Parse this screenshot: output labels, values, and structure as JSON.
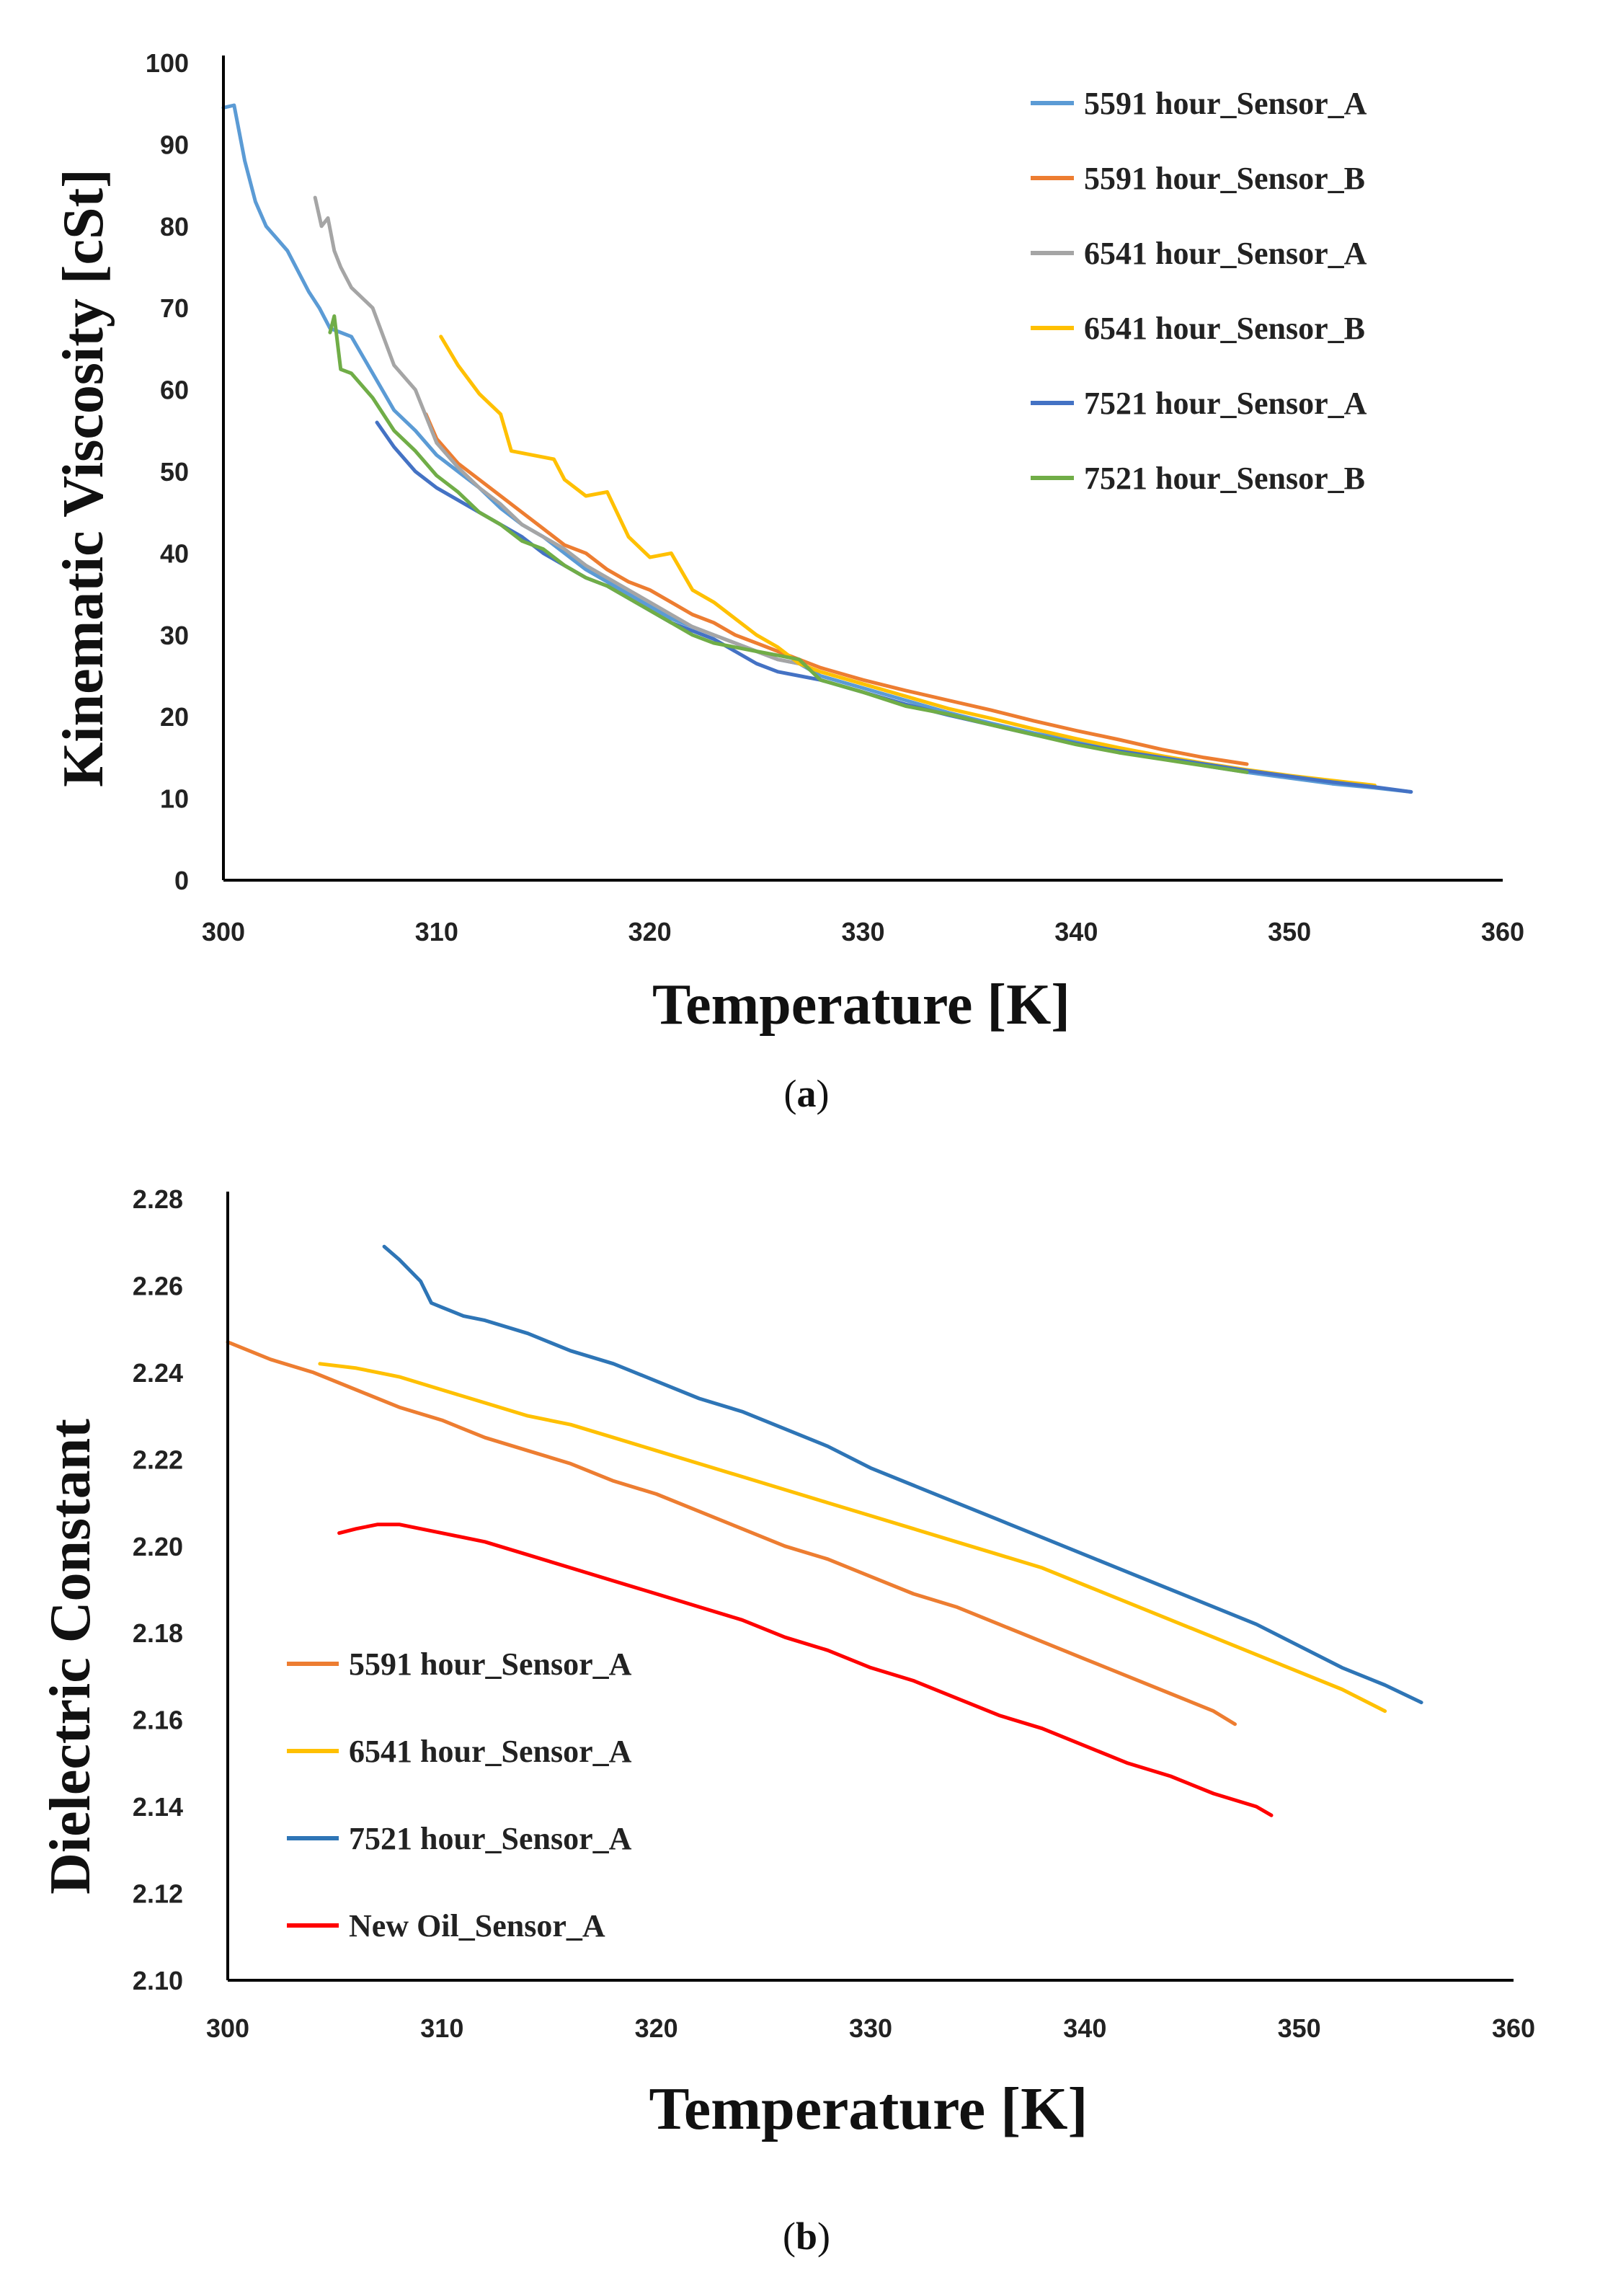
{
  "chart_data": [
    {
      "type": "line",
      "panel_label": "a",
      "xlabel": "Temperature [K]",
      "ylabel": "Kinematic Viscosity [cSt]",
      "xlim": [
        300,
        360
      ],
      "ylim": [
        0,
        100
      ],
      "xticks": [
        300,
        310,
        320,
        330,
        340,
        350,
        360
      ],
      "yticks": [
        0,
        10,
        20,
        30,
        40,
        50,
        60,
        70,
        80,
        90,
        100
      ],
      "legend_position": "top-right",
      "series": [
        {
          "name": "5591 hour_Sensor_A",
          "color": "#5b9bd5",
          "x": [
            300,
            300.5,
            301,
            301.5,
            302,
            303,
            304,
            304.5,
            305,
            306,
            307,
            308,
            309,
            310,
            311,
            312,
            313,
            314,
            315,
            316,
            317,
            318,
            319,
            320,
            321,
            322,
            323,
            324,
            325,
            326,
            327,
            328,
            330,
            332,
            334,
            336,
            338,
            340,
            342,
            344,
            346,
            348,
            350,
            352,
            354,
            355.7
          ],
          "y": [
            94.5,
            94.8,
            88,
            83,
            80,
            77,
            72,
            70,
            67.5,
            66.5,
            62,
            57.5,
            55,
            52,
            50,
            48,
            45.5,
            43.5,
            42,
            40,
            38,
            36.5,
            35,
            33.5,
            32,
            31,
            30,
            29,
            28,
            27,
            26.5,
            25,
            23.5,
            22,
            20.5,
            19.2,
            18,
            17,
            16,
            15,
            14,
            13.2,
            12.5,
            11.8,
            11.3,
            10.8
          ]
        },
        {
          "name": "5591 hour_Sensor_B",
          "color": "#ed7d31",
          "x": [
            309.5,
            310,
            311,
            312,
            313,
            314,
            315,
            316,
            317,
            318,
            319,
            320,
            321,
            322,
            323,
            324,
            325,
            326,
            327,
            328,
            330,
            332,
            334,
            336,
            338,
            340,
            342,
            344,
            346,
            348
          ],
          "y": [
            57,
            54,
            51,
            49,
            47,
            45,
            43,
            41,
            40,
            38,
            36.5,
            35.5,
            34,
            32.5,
            31.5,
            30,
            29,
            28,
            27,
            26,
            24.5,
            23.2,
            22,
            20.8,
            19.5,
            18.3,
            17.2,
            16,
            15,
            14.2
          ]
        },
        {
          "name": "6541 hour_Sensor_A",
          "color": "#a5a5a5",
          "x": [
            304.3,
            304.6,
            304.9,
            305.2,
            305.5,
            306,
            307,
            308,
            309,
            310,
            311,
            312,
            313,
            314,
            315,
            316,
            317,
            318,
            319,
            320,
            321,
            322,
            323,
            324,
            325,
            326,
            327
          ],
          "y": [
            83.5,
            80,
            81,
            77,
            75,
            72.5,
            70,
            63,
            60,
            53.5,
            50.5,
            48,
            46,
            43.5,
            42,
            40.5,
            38.5,
            37,
            35.5,
            34,
            32.5,
            31,
            30,
            29,
            28,
            27,
            26.5
          ]
        },
        {
          "name": "6541 hour_Sensor_B",
          "color": "#ffc000",
          "x": [
            310.2,
            311,
            312,
            313,
            313.5,
            314.5,
            315.5,
            316,
            317,
            318,
            319,
            320,
            321,
            322,
            323,
            324,
            325,
            326,
            327,
            328,
            330,
            332,
            334,
            336,
            338,
            340,
            342,
            344,
            346,
            348,
            350,
            352,
            354
          ],
          "y": [
            66.5,
            63,
            59.5,
            57,
            52.5,
            52,
            51.5,
            49,
            47,
            47.5,
            42,
            39.5,
            40,
            35.5,
            34,
            32,
            30,
            28.5,
            26.5,
            25.5,
            24,
            22.5,
            21,
            19.8,
            18.5,
            17.3,
            16.2,
            15.2,
            14.3,
            13.5,
            12.8,
            12.2,
            11.6
          ]
        },
        {
          "name": "7521 hour_Sensor_A",
          "color": "#4472c4",
          "x": [
            307.2,
            308,
            309,
            310,
            311,
            312,
            313,
            314,
            315,
            316,
            317,
            318,
            319,
            320,
            321,
            322,
            323,
            324,
            325,
            326,
            327,
            328,
            330,
            332,
            334,
            336,
            338,
            340,
            342,
            344,
            346,
            348,
            350,
            352,
            354,
            355.7
          ],
          "y": [
            56,
            53,
            50,
            48,
            46.5,
            45,
            43.5,
            42,
            40,
            38.5,
            37,
            36,
            34.5,
            33,
            31.5,
            30.5,
            29.5,
            28,
            26.5,
            25.5,
            25,
            24.5,
            23,
            21.5,
            20.2,
            19,
            17.8,
            16.7,
            15.8,
            15,
            14.2,
            13.4,
            12.7,
            12,
            11.4,
            10.8
          ]
        },
        {
          "name": "7521 hour_Sensor_B",
          "color": "#70ad47",
          "x": [
            305,
            305.2,
            305.5,
            306,
            307,
            308,
            309,
            310,
            311,
            312,
            313,
            314,
            315,
            316,
            317,
            318,
            319,
            320,
            321,
            322,
            323,
            324,
            325,
            326,
            327,
            328,
            330,
            332,
            334,
            336,
            338,
            340,
            342,
            344,
            346,
            348
          ],
          "y": [
            67,
            69,
            62.5,
            62,
            59,
            55,
            52.5,
            49.5,
            47.5,
            45,
            43.5,
            41.5,
            40.5,
            38.5,
            37,
            36,
            34.5,
            33,
            31.5,
            30,
            29,
            28.5,
            28,
            27.5,
            27,
            24.5,
            23,
            21.3,
            20.3,
            19,
            17.8,
            16.6,
            15.6,
            14.8,
            14,
            13.2
          ]
        }
      ]
    },
    {
      "type": "line",
      "panel_label": "b",
      "xlabel": "Temperature [K]",
      "ylabel": "Dielectric Constant",
      "xlim": [
        300,
        360
      ],
      "ylim": [
        2.1,
        2.28
      ],
      "xticks": [
        300,
        310,
        320,
        330,
        340,
        350,
        360
      ],
      "yticks": [
        "2.10",
        "2.12",
        "2.14",
        "2.16",
        "2.18",
        "2.20",
        "2.22",
        "2.24",
        "2.26",
        "2.28"
      ],
      "legend_position": "bottom-left",
      "series": [
        {
          "name": "5591 hour_Sensor_A",
          "color": "#ed7d31",
          "x": [
            300,
            302,
            304,
            306,
            308,
            310,
            312,
            314,
            316,
            318,
            320,
            322,
            324,
            326,
            328,
            330,
            332,
            334,
            336,
            338,
            340,
            342,
            344,
            346,
            347
          ],
          "y": [
            2.247,
            2.243,
            2.24,
            2.236,
            2.232,
            2.229,
            2.225,
            2.222,
            2.219,
            2.215,
            2.212,
            2.208,
            2.204,
            2.2,
            2.197,
            2.193,
            2.189,
            2.186,
            2.182,
            2.178,
            2.174,
            2.17,
            2.166,
            2.162,
            2.159
          ]
        },
        {
          "name": "6541 hour_Sensor_A",
          "color": "#ffc000",
          "x": [
            304.3,
            306,
            308,
            310,
            312,
            314,
            316,
            318,
            320,
            322,
            324,
            326,
            328,
            330,
            332,
            334,
            336,
            338,
            340,
            342,
            344,
            346,
            348,
            350,
            352,
            354
          ],
          "y": [
            2.242,
            2.241,
            2.239,
            2.236,
            2.233,
            2.23,
            2.228,
            2.225,
            2.222,
            2.219,
            2.216,
            2.213,
            2.21,
            2.207,
            2.204,
            2.201,
            2.198,
            2.195,
            2.191,
            2.187,
            2.183,
            2.179,
            2.175,
            2.171,
            2.167,
            2.162
          ]
        },
        {
          "name": "7521 hour_Sensor_A",
          "color": "#2e75b6",
          "x": [
            307.3,
            308,
            309,
            309.5,
            310,
            311,
            312,
            314,
            316,
            318,
            320,
            322,
            324,
            326,
            328,
            330,
            332,
            334,
            336,
            338,
            340,
            342,
            344,
            346,
            348,
            350,
            352,
            354,
            355.7
          ],
          "y": [
            2.269,
            2.266,
            2.261,
            2.256,
            2.255,
            2.253,
            2.252,
            2.249,
            2.245,
            2.242,
            2.238,
            2.234,
            2.231,
            2.227,
            2.223,
            2.218,
            2.214,
            2.21,
            2.206,
            2.202,
            2.198,
            2.194,
            2.19,
            2.186,
            2.182,
            2.177,
            2.172,
            2.168,
            2.164
          ]
        },
        {
          "name": "New Oil_Sensor_A",
          "color": "#ff0000",
          "x": [
            305.2,
            306,
            307,
            308,
            309,
            310,
            312,
            314,
            316,
            318,
            320,
            322,
            324,
            326,
            328,
            330,
            332,
            334,
            336,
            338,
            340,
            342,
            344,
            346,
            348,
            348.7
          ],
          "y": [
            2.203,
            2.204,
            2.205,
            2.205,
            2.204,
            2.203,
            2.201,
            2.198,
            2.195,
            2.192,
            2.189,
            2.186,
            2.183,
            2.179,
            2.176,
            2.172,
            2.169,
            2.165,
            2.161,
            2.158,
            2.154,
            2.15,
            2.147,
            2.143,
            2.14,
            2.138
          ]
        }
      ]
    }
  ]
}
